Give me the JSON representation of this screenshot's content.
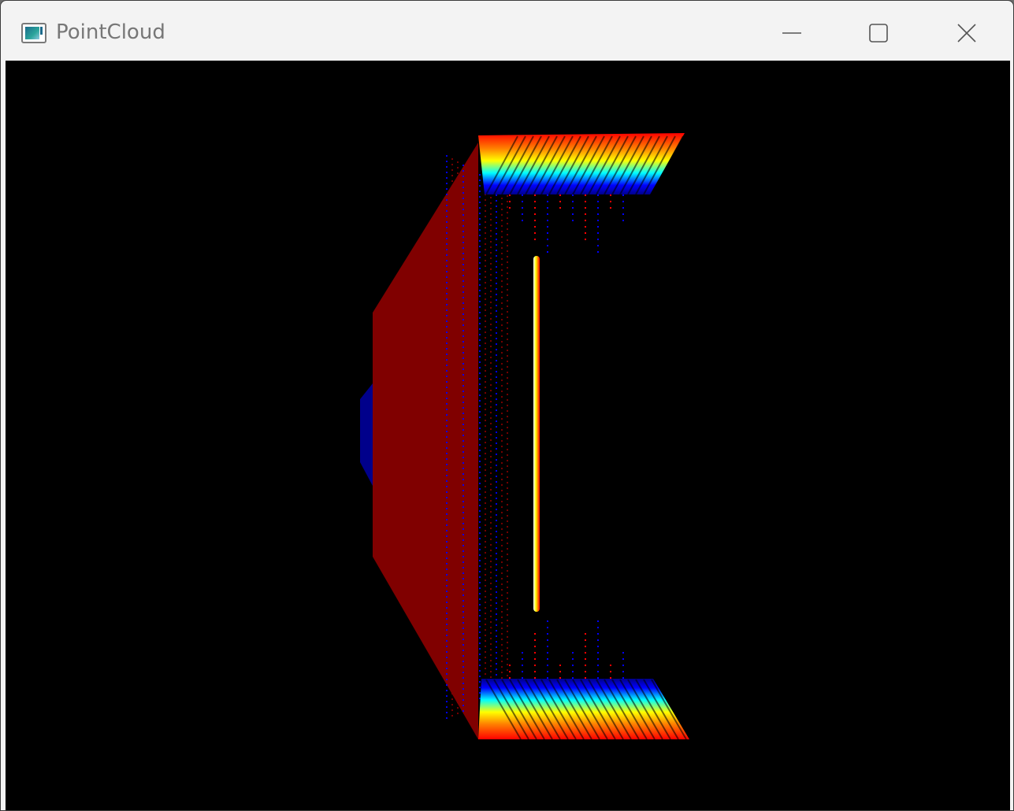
{
  "window": {
    "title": "PointCloud",
    "icon": "app-window-icon",
    "controls": {
      "minimize": "minimize-icon",
      "maximize": "maximize-icon",
      "close": "close-icon"
    }
  },
  "viewport": {
    "background": "#000000",
    "colormap": [
      "#00008b",
      "#0000ff",
      "#00ffff",
      "#ffff00",
      "#ff0000",
      "#800000"
    ],
    "dominant_color": "#800000"
  }
}
